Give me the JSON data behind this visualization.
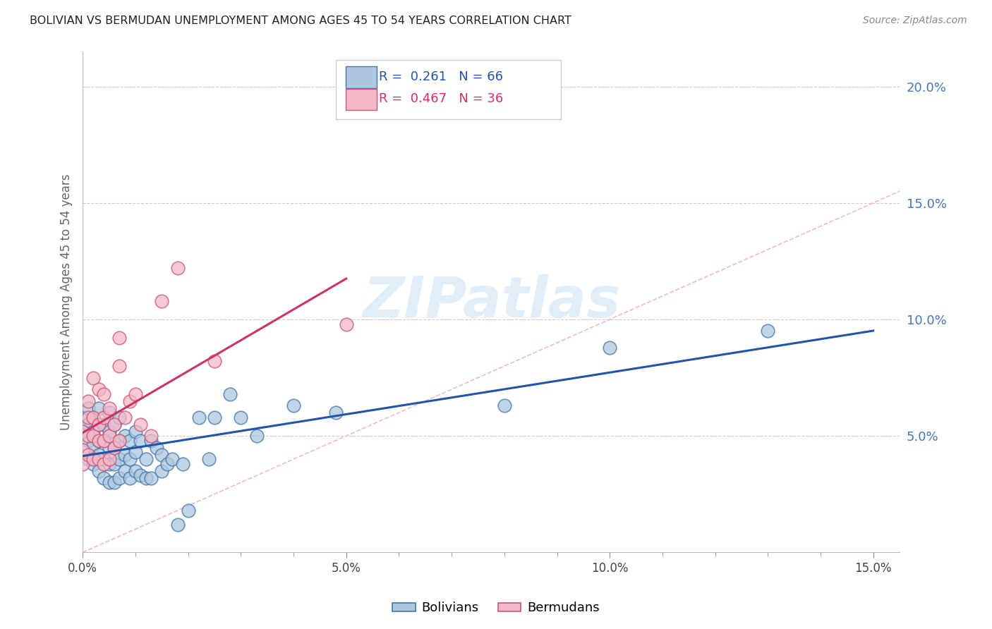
{
  "title": "BOLIVIAN VS BERMUDAN UNEMPLOYMENT AMONG AGES 45 TO 54 YEARS CORRELATION CHART",
  "source": "Source: ZipAtlas.com",
  "ylabel": "Unemployment Among Ages 45 to 54 years",
  "xlim": [
    0.0,
    0.155
  ],
  "ylim": [
    0.0,
    0.215
  ],
  "xticks_major": [
    0.0,
    0.05,
    0.1,
    0.15
  ],
  "xticks_minor": [
    0.0,
    0.01,
    0.02,
    0.03,
    0.04,
    0.05,
    0.06,
    0.07,
    0.08,
    0.09,
    0.1,
    0.11,
    0.12,
    0.13,
    0.14,
    0.15
  ],
  "yticks_right": [
    0.05,
    0.1,
    0.15,
    0.2
  ],
  "bolivians_R": 0.261,
  "bolivians_N": 66,
  "bermudans_R": 0.467,
  "bermudans_N": 36,
  "blue_fill": "#aec7e0",
  "blue_edge": "#4477aa",
  "pink_fill": "#f4b8c8",
  "pink_edge": "#cc5577",
  "blue_line_color": "#2255aa",
  "pink_line_color": "#cc3366",
  "diag_color": "#f0b8c8",
  "legend_blue_label": "Bolivians",
  "legend_pink_label": "Bermudans",
  "bolivians_x": [
    0.0,
    0.0,
    0.001,
    0.001,
    0.001,
    0.001,
    0.002,
    0.002,
    0.002,
    0.002,
    0.003,
    0.003,
    0.003,
    0.003,
    0.003,
    0.004,
    0.004,
    0.004,
    0.004,
    0.005,
    0.005,
    0.005,
    0.005,
    0.005,
    0.006,
    0.006,
    0.006,
    0.006,
    0.007,
    0.007,
    0.007,
    0.007,
    0.008,
    0.008,
    0.008,
    0.009,
    0.009,
    0.009,
    0.01,
    0.01,
    0.01,
    0.011,
    0.011,
    0.012,
    0.012,
    0.013,
    0.013,
    0.014,
    0.015,
    0.015,
    0.016,
    0.017,
    0.018,
    0.019,
    0.02,
    0.022,
    0.024,
    0.025,
    0.028,
    0.03,
    0.033,
    0.04,
    0.048,
    0.08,
    0.1,
    0.13
  ],
  "bolivians_y": [
    0.052,
    0.058,
    0.04,
    0.048,
    0.055,
    0.062,
    0.038,
    0.046,
    0.052,
    0.058,
    0.035,
    0.042,
    0.048,
    0.055,
    0.062,
    0.032,
    0.04,
    0.048,
    0.055,
    0.03,
    0.038,
    0.045,
    0.052,
    0.06,
    0.03,
    0.038,
    0.045,
    0.055,
    0.032,
    0.04,
    0.048,
    0.058,
    0.035,
    0.042,
    0.05,
    0.032,
    0.04,
    0.048,
    0.035,
    0.043,
    0.052,
    0.033,
    0.048,
    0.032,
    0.04,
    0.032,
    0.048,
    0.045,
    0.035,
    0.042,
    0.038,
    0.04,
    0.012,
    0.038,
    0.018,
    0.058,
    0.04,
    0.058,
    0.068,
    0.058,
    0.05,
    0.063,
    0.06,
    0.063,
    0.088,
    0.095
  ],
  "bermudans_x": [
    0.0,
    0.0,
    0.0,
    0.001,
    0.001,
    0.001,
    0.001,
    0.002,
    0.002,
    0.002,
    0.002,
    0.003,
    0.003,
    0.003,
    0.003,
    0.004,
    0.004,
    0.004,
    0.004,
    0.005,
    0.005,
    0.005,
    0.006,
    0.006,
    0.007,
    0.007,
    0.007,
    0.008,
    0.009,
    0.01,
    0.011,
    0.013,
    0.015,
    0.018,
    0.025,
    0.05
  ],
  "bermudans_y": [
    0.038,
    0.044,
    0.052,
    0.042,
    0.05,
    0.058,
    0.065,
    0.04,
    0.05,
    0.058,
    0.075,
    0.04,
    0.048,
    0.055,
    0.07,
    0.038,
    0.048,
    0.058,
    0.068,
    0.04,
    0.05,
    0.062,
    0.045,
    0.055,
    0.048,
    0.08,
    0.092,
    0.058,
    0.065,
    0.068,
    0.055,
    0.05,
    0.108,
    0.122,
    0.082,
    0.098
  ]
}
